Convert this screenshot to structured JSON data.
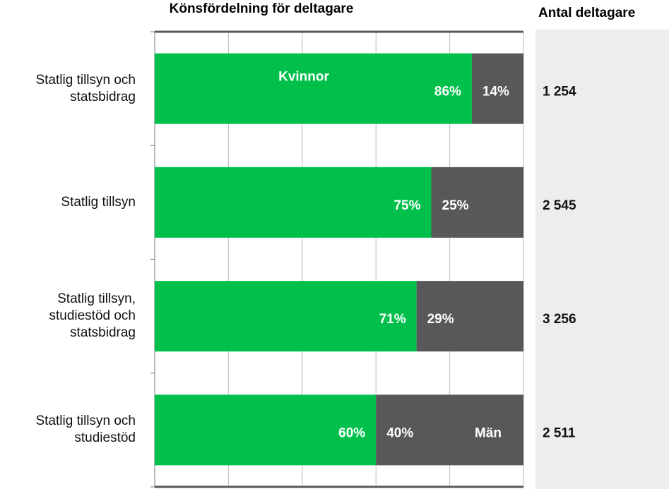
{
  "chart_data": {
    "type": "stacked-bar-horizontal",
    "title": "Könsfördelning för deltagare",
    "categories": [
      "Statlig tillsyn och\nstatsbidrag",
      "Statlig tillsyn",
      "Statlig tillsyn,\nstudiestöd och\nstatsbidrag",
      "Statlig tillsyn och\nstudiestöd"
    ],
    "series": [
      {
        "name": "Kvinnor",
        "color": "#00c04b",
        "values": [
          86,
          75,
          71,
          60
        ],
        "value_labels": [
          "86%",
          "75%",
          "71%",
          "60%"
        ]
      },
      {
        "name": "Män",
        "color": "#58585a",
        "values": [
          14,
          25,
          29,
          40
        ],
        "value_labels": [
          "14%",
          "25%",
          "29%",
          "40%"
        ]
      }
    ],
    "xlim": [
      0,
      100
    ],
    "xticks": [
      0,
      20,
      40,
      60,
      80,
      100
    ],
    "grid": true,
    "participants": {
      "title": "Antal deltagare",
      "values": [
        1254,
        2545,
        3256,
        2511
      ],
      "value_labels": [
        "1 254",
        "2 545",
        "3 256",
        "2 511"
      ]
    }
  }
}
